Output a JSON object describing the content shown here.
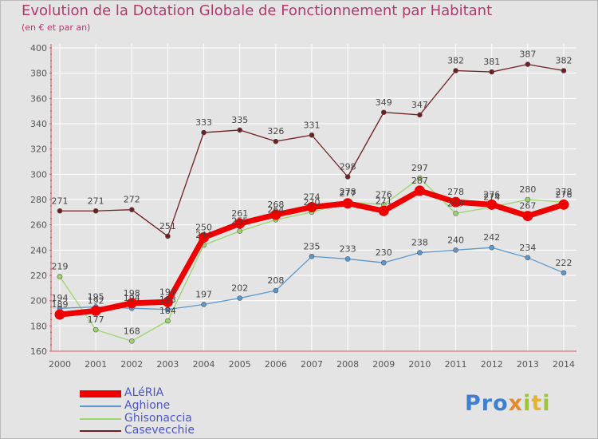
{
  "title": "Evolution de la Dotation Globale de Fonctionnement par Habitant",
  "subtitle": "(en € et par an)",
  "logo": {
    "text_p": "Pro",
    "text_x": "x",
    "text_i": "i",
    "text_t": "t",
    "text_end": "i",
    "colors": [
      "#3e7fd0",
      "#e68a2e",
      "#9bc43a",
      "#e6b32e"
    ]
  },
  "chart_data": {
    "type": "line",
    "title": "Evolution de la Dotation Globale de Fonctionnement par Habitant",
    "subtitle": "(en € et par an)",
    "categories": [
      "2000",
      "2001",
      "2002",
      "2003",
      "2004",
      "2005",
      "2006",
      "2007",
      "2008",
      "2009",
      "2010",
      "2011",
      "2012",
      "2013",
      "2014"
    ],
    "ylim": [
      160,
      400
    ],
    "yticks": [
      160,
      180,
      200,
      220,
      240,
      260,
      280,
      300,
      320,
      340,
      360,
      380,
      400
    ],
    "ytick_labels": [
      "160",
      "180",
      "200",
      "220",
      "240",
      "260",
      "280",
      "300",
      "320",
      "340",
      "360",
      "380",
      "400"
    ],
    "grid": true,
    "legend_position": "bottom-left",
    "series": [
      {
        "name": "ALéRIA",
        "color": "#ee0000",
        "values": [
          189,
          192,
          198,
          199,
          250,
          261,
          268,
          274,
          277,
          271,
          287,
          278,
          276,
          267,
          276
        ],
        "labels": [
          "189",
          "192",
          "198",
          "199",
          "250",
          "261",
          "268",
          "274",
          "277",
          "271",
          "287",
          "278",
          "276",
          "267",
          "276"
        ]
      },
      {
        "name": "Aghione",
        "color": "#5b98cf",
        "values": [
          194,
          195,
          194,
          193,
          197,
          202,
          208,
          235,
          233,
          230,
          238,
          240,
          242,
          234,
          222
        ],
        "labels": [
          "194",
          "195",
          "194",
          "193",
          "197",
          "202",
          "208",
          "235",
          "233",
          "230",
          "238",
          "240",
          "242",
          "234",
          "222"
        ]
      },
      {
        "name": "Ghisonaccia",
        "color": "#9ad66a",
        "values": [
          219,
          177,
          168,
          184,
          244,
          255,
          264,
          270,
          278,
          276,
          297,
          269,
          274,
          280,
          278
        ],
        "labels": [
          "219",
          "177",
          "168",
          "184",
          "244",
          "255",
          "264",
          "270",
          "278",
          "276",
          "297",
          "269",
          "274",
          "280",
          "278"
        ]
      },
      {
        "name": "Casevecchie",
        "color": "#6f1f22",
        "values": [
          271,
          271,
          272,
          251,
          333,
          335,
          326,
          331,
          298,
          349,
          347,
          382,
          381,
          387,
          382
        ],
        "labels": [
          "271",
          "271",
          "272",
          "251",
          "333",
          "335",
          "326",
          "331",
          "298",
          "349",
          "347",
          "382",
          "381",
          "387",
          "382"
        ]
      }
    ]
  }
}
